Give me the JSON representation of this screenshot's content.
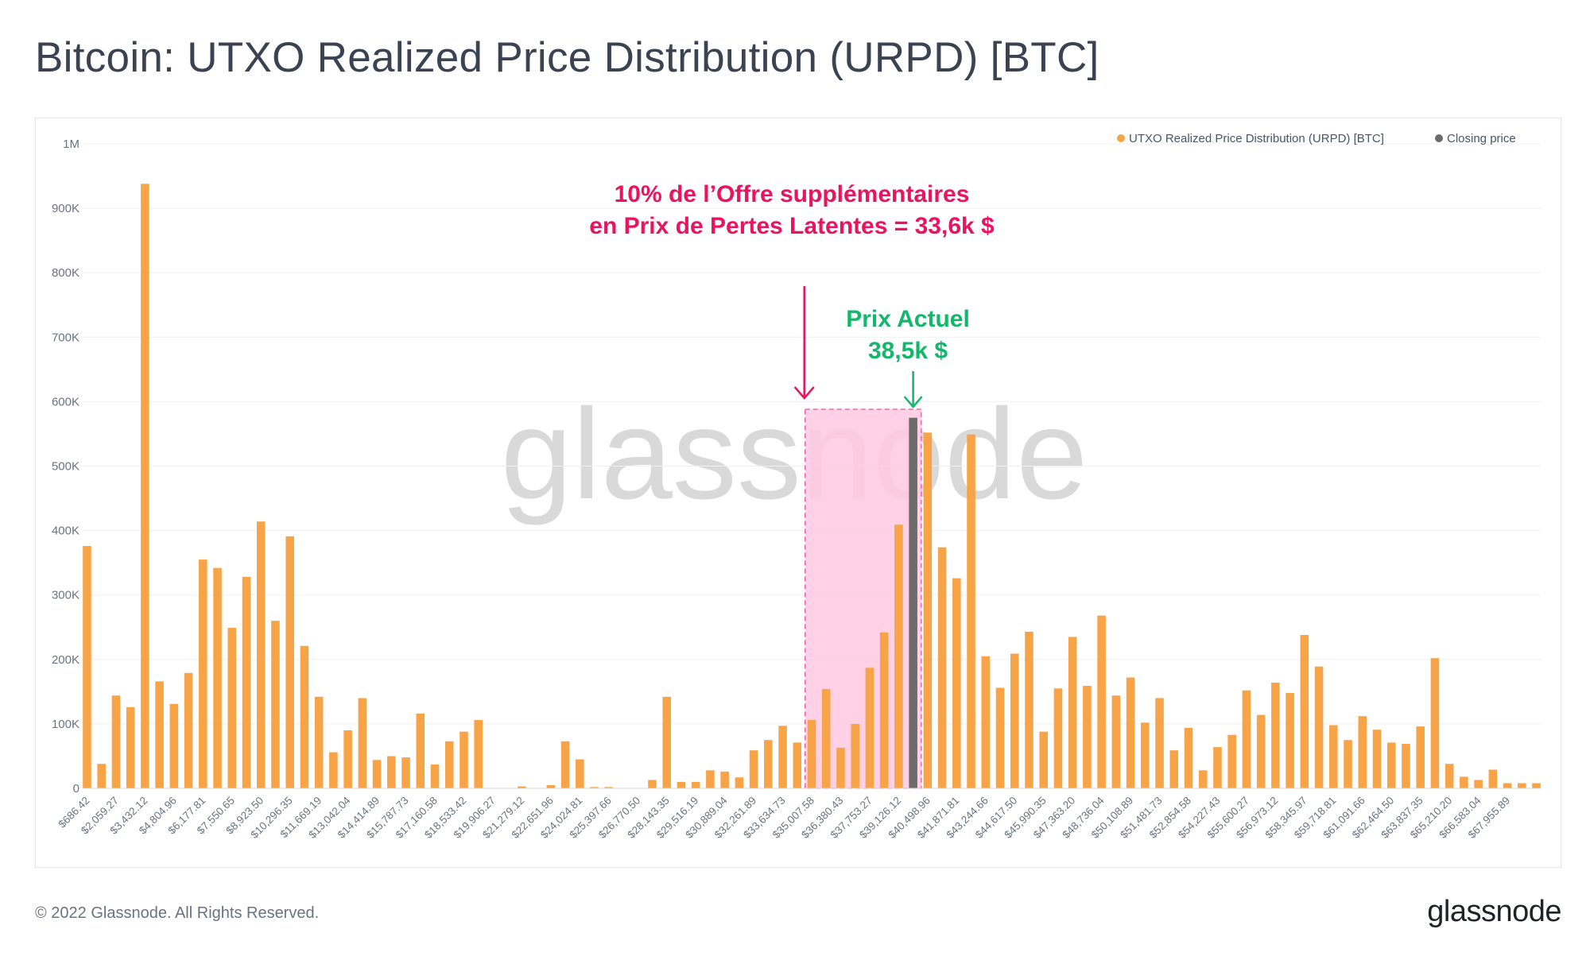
{
  "title": "Bitcoin: UTXO Realized Price Distribution (URPD) [BTC]",
  "footer": {
    "copyright": "© 2022 Glassnode. All Rights Reserved.",
    "logo": "glassnode"
  },
  "watermark": "glassnode",
  "colors": {
    "bar": "#f7a448",
    "closing": "#6b6b6b",
    "highlight_fill": "#ffc8e2",
    "highlight_border": "#e8559c",
    "annotation_pink": "#e8145f",
    "annotation_green": "#12b76a",
    "grid": "#eef0f3",
    "text": "#6b7280"
  },
  "chart_data": {
    "type": "bar",
    "title": "Bitcoin: UTXO Realized Price Distribution (URPD) [BTC]",
    "legend": [
      {
        "label": "UTXO Realized Price Distribution (URPD) [BTC]",
        "color": "#f7a448"
      },
      {
        "label": "Closing price",
        "color": "#6b6b6b"
      }
    ],
    "legend_position": "top-right",
    "y_ticks": [
      {
        "value": 0,
        "label": "0"
      },
      {
        "value": 100000,
        "label": "100K"
      },
      {
        "value": 200000,
        "label": "200K"
      },
      {
        "value": 300000,
        "label": "300K"
      },
      {
        "value": 400000,
        "label": "400K"
      },
      {
        "value": 500000,
        "label": "500K"
      },
      {
        "value": 600000,
        "label": "600K"
      },
      {
        "value": 700000,
        "label": "700K"
      },
      {
        "value": 800000,
        "label": "800K"
      },
      {
        "value": 900000,
        "label": "900K"
      },
      {
        "value": 1000000,
        "label": "1M"
      }
    ],
    "ylim": [
      0,
      1000000
    ],
    "x_tick_labels": [
      "$686.42",
      "$2,059.27",
      "$3,432.12",
      "$4,804.96",
      "$6,177.81",
      "$7,550.65",
      "$8,923.50",
      "$10,296.35",
      "$11,669.19",
      "$13,042.04",
      "$14,414.89",
      "$15,787.73",
      "$17,160.58",
      "$18,533.42",
      "$19,906.27",
      "$21,279.12",
      "$22,651.96",
      "$24,024.81",
      "$25,397.66",
      "$26,770.50",
      "$28,143.35",
      "$29,516.19",
      "$30,889.04",
      "$32,261.89",
      "$33,634.73",
      "$35,007.58",
      "$36,380.43",
      "$37,753.27",
      "$39,126.12",
      "$40,498.96",
      "$41,871.81",
      "$43,244.66",
      "$44,617.50",
      "$45,990.35",
      "$47,363.20",
      "$48,736.04",
      "$50,108.89",
      "$51,481.73",
      "$52,854.58",
      "$54,227.43",
      "$55,600.27",
      "$56,973.12",
      "$58,345.97",
      "$59,718.81",
      "$61,091.66",
      "$62,464.50",
      "$63,837.35",
      "$65,210.20",
      "$66,583.04",
      "$67,955.89"
    ],
    "values": [
      376000,
      38000,
      144000,
      126000,
      938000,
      166000,
      131000,
      179000,
      355000,
      342000,
      249000,
      328000,
      414000,
      260000,
      391000,
      221000,
      142000,
      56000,
      90000,
      140000,
      44000,
      50000,
      48000,
      116000,
      37000,
      73000,
      88000,
      106000,
      0,
      0,
      3000,
      0,
      5000,
      73000,
      45000,
      2000,
      2000,
      0,
      0,
      13000,
      142000,
      10000,
      10000,
      28000,
      26000,
      17000,
      59000,
      75000,
      97000,
      71000,
      106000,
      154000,
      63000,
      100000,
      187000,
      242000,
      409000,
      575000,
      552000,
      374000,
      326000,
      549000,
      205000,
      156000,
      209000,
      243000,
      88000,
      155000,
      235000,
      159000,
      268000,
      144000,
      172000,
      102000,
      140000,
      59000,
      94000,
      28000,
      64000,
      83000,
      152000,
      114000,
      164000,
      148000,
      238000,
      189000,
      98000,
      75000,
      112000,
      91000,
      71000,
      69000,
      96000,
      202000,
      38000,
      18000,
      13000,
      29000,
      8000,
      8000,
      8000
    ],
    "closing_price_index": 57,
    "annotations": {
      "supply_note": [
        "10% de l’Offre supplémentaires",
        "en Prix de Pertes Latentes = 33,6k $"
      ],
      "current_price_note": [
        "Prix Actuel",
        "38,5k $"
      ],
      "highlight_range_start_index": 50,
      "highlight_range_end_index": 57
    }
  }
}
